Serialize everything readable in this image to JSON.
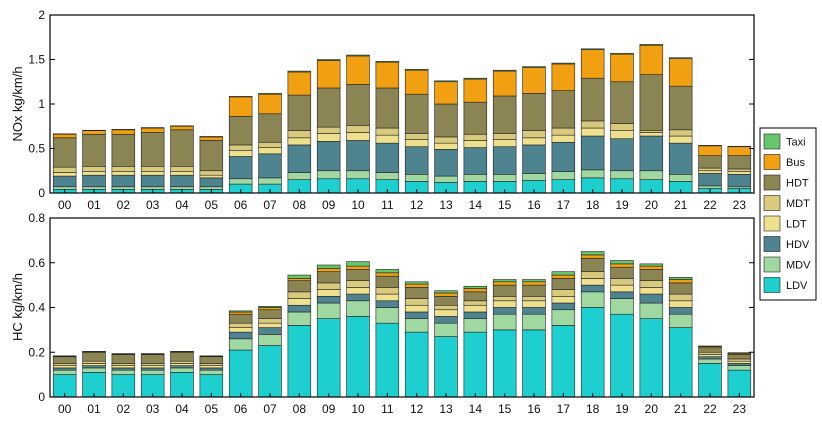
{
  "colors": {
    "LDV": "#1ecfd0",
    "MDV": "#9fd8a1",
    "HDV": "#4e8390",
    "LDT": "#efe08e",
    "MDT": "#d8c97d",
    "HDT": "#8a8552",
    "Bus": "#f0a010",
    "Taxi": "#66c66b"
  },
  "legend": {
    "items": [
      "Taxi",
      "Bus",
      "HDT",
      "MDT",
      "LDT",
      "HDV",
      "MDV",
      "LDV"
    ]
  },
  "chart_data": [
    {
      "type": "bar",
      "stacked": true,
      "title": "",
      "xlabel": "",
      "ylabel": "NOx kg/km/h",
      "ylim": [
        0,
        2
      ],
      "yticks": [
        "0",
        "0.5",
        "1",
        "1.5",
        "2"
      ],
      "categories": [
        "00",
        "01",
        "02",
        "03",
        "04",
        "05",
        "06",
        "07",
        "08",
        "09",
        "10",
        "11",
        "12",
        "13",
        "14",
        "15",
        "16",
        "17",
        "18",
        "19",
        "20",
        "21",
        "22",
        "23"
      ],
      "series": [
        {
          "name": "LDV",
          "values": [
            0.04,
            0.04,
            0.04,
            0.04,
            0.04,
            0.04,
            0.1,
            0.1,
            0.15,
            0.16,
            0.16,
            0.15,
            0.13,
            0.12,
            0.13,
            0.13,
            0.14,
            0.15,
            0.17,
            0.16,
            0.15,
            0.13,
            0.05,
            0.05
          ]
        },
        {
          "name": "MDV",
          "values": [
            0.03,
            0.03,
            0.03,
            0.03,
            0.03,
            0.03,
            0.06,
            0.07,
            0.08,
            0.09,
            0.09,
            0.08,
            0.08,
            0.07,
            0.08,
            0.08,
            0.08,
            0.09,
            0.09,
            0.09,
            0.1,
            0.08,
            0.03,
            0.02
          ]
        },
        {
          "name": "HDV",
          "values": [
            0.12,
            0.13,
            0.13,
            0.13,
            0.13,
            0.1,
            0.25,
            0.27,
            0.31,
            0.33,
            0.34,
            0.33,
            0.31,
            0.3,
            0.3,
            0.31,
            0.32,
            0.33,
            0.38,
            0.36,
            0.39,
            0.35,
            0.14,
            0.14
          ]
        },
        {
          "name": "LDT",
          "values": [
            0.04,
            0.04,
            0.04,
            0.04,
            0.04,
            0.03,
            0.07,
            0.07,
            0.08,
            0.09,
            0.09,
            0.09,
            0.08,
            0.07,
            0.08,
            0.08,
            0.08,
            0.08,
            0.09,
            0.09,
            0.04,
            0.08,
            0.03,
            0.03
          ]
        },
        {
          "name": "MDT",
          "values": [
            0.06,
            0.06,
            0.06,
            0.06,
            0.06,
            0.05,
            0.06,
            0.06,
            0.08,
            0.07,
            0.08,
            0.08,
            0.07,
            0.07,
            0.07,
            0.07,
            0.08,
            0.08,
            0.08,
            0.08,
            0.02,
            0.07,
            0.03,
            0.03
          ]
        },
        {
          "name": "HDT",
          "values": [
            0.33,
            0.36,
            0.36,
            0.38,
            0.41,
            0.34,
            0.32,
            0.32,
            0.4,
            0.44,
            0.46,
            0.45,
            0.44,
            0.37,
            0.36,
            0.42,
            0.42,
            0.42,
            0.48,
            0.47,
            0.63,
            0.49,
            0.14,
            0.15
          ]
        },
        {
          "name": "Bus",
          "values": [
            0.04,
            0.04,
            0.05,
            0.05,
            0.04,
            0.04,
            0.22,
            0.22,
            0.26,
            0.31,
            0.32,
            0.29,
            0.27,
            0.25,
            0.26,
            0.28,
            0.29,
            0.3,
            0.32,
            0.31,
            0.33,
            0.31,
            0.11,
            0.1
          ]
        },
        {
          "name": "Taxi",
          "values": [
            0.005,
            0.005,
            0.005,
            0.005,
            0.005,
            0.005,
            0.005,
            0.01,
            0.01,
            0.01,
            0.01,
            0.01,
            0.01,
            0.01,
            0.01,
            0.01,
            0.01,
            0.01,
            0.01,
            0.01,
            0.01,
            0.01,
            0.005,
            0.005
          ]
        }
      ]
    },
    {
      "type": "bar",
      "stacked": true,
      "title": "",
      "xlabel": "",
      "ylabel": "HC kg/km/h",
      "ylim": [
        0,
        0.8
      ],
      "yticks": [
        "0",
        "0.2",
        "0.4",
        "0.6",
        "0.8"
      ],
      "categories": [
        "00",
        "01",
        "02",
        "03",
        "04",
        "05",
        "06",
        "07",
        "08",
        "09",
        "10",
        "11",
        "12",
        "13",
        "14",
        "15",
        "16",
        "17",
        "18",
        "19",
        "20",
        "21",
        "22",
        "23"
      ],
      "series": [
        {
          "name": "LDV",
          "values": [
            0.1,
            0.11,
            0.1,
            0.1,
            0.11,
            0.1,
            0.21,
            0.23,
            0.32,
            0.35,
            0.36,
            0.33,
            0.29,
            0.27,
            0.29,
            0.3,
            0.3,
            0.32,
            0.4,
            0.37,
            0.35,
            0.31,
            0.15,
            0.12
          ]
        },
        {
          "name": "MDV",
          "values": [
            0.02,
            0.02,
            0.02,
            0.02,
            0.02,
            0.02,
            0.05,
            0.05,
            0.06,
            0.07,
            0.07,
            0.07,
            0.06,
            0.06,
            0.06,
            0.07,
            0.07,
            0.07,
            0.07,
            0.07,
            0.07,
            0.06,
            0.02,
            0.02
          ]
        },
        {
          "name": "HDV",
          "values": [
            0.01,
            0.01,
            0.01,
            0.01,
            0.01,
            0.01,
            0.03,
            0.03,
            0.03,
            0.03,
            0.03,
            0.03,
            0.03,
            0.03,
            0.03,
            0.03,
            0.03,
            0.03,
            0.03,
            0.03,
            0.04,
            0.03,
            0.01,
            0.01
          ]
        },
        {
          "name": "LDT",
          "values": [
            0.01,
            0.01,
            0.01,
            0.01,
            0.01,
            0.01,
            0.02,
            0.02,
            0.03,
            0.03,
            0.03,
            0.03,
            0.03,
            0.03,
            0.03,
            0.03,
            0.03,
            0.03,
            0.03,
            0.03,
            0.03,
            0.03,
            0.01,
            0.01
          ]
        },
        {
          "name": "MDT",
          "values": [
            0.01,
            0.01,
            0.01,
            0.01,
            0.01,
            0.01,
            0.02,
            0.02,
            0.03,
            0.03,
            0.03,
            0.03,
            0.03,
            0.02,
            0.02,
            0.02,
            0.02,
            0.03,
            0.03,
            0.03,
            0.03,
            0.03,
            0.01,
            0.01
          ]
        },
        {
          "name": "HDT",
          "values": [
            0.03,
            0.04,
            0.04,
            0.04,
            0.04,
            0.03,
            0.04,
            0.04,
            0.05,
            0.05,
            0.05,
            0.05,
            0.05,
            0.04,
            0.04,
            0.05,
            0.05,
            0.05,
            0.06,
            0.05,
            0.05,
            0.05,
            0.02,
            0.02
          ]
        },
        {
          "name": "Bus",
          "values": [
            0.002,
            0.002,
            0.002,
            0.002,
            0.002,
            0.002,
            0.01,
            0.01,
            0.01,
            0.015,
            0.015,
            0.015,
            0.015,
            0.015,
            0.015,
            0.015,
            0.015,
            0.015,
            0.015,
            0.015,
            0.015,
            0.015,
            0.005,
            0.005
          ]
        },
        {
          "name": "Taxi",
          "values": [
            0.002,
            0.002,
            0.002,
            0.002,
            0.002,
            0.002,
            0.005,
            0.005,
            0.015,
            0.015,
            0.02,
            0.015,
            0.01,
            0.01,
            0.01,
            0.01,
            0.01,
            0.015,
            0.015,
            0.015,
            0.01,
            0.01,
            0.003,
            0.003
          ]
        }
      ]
    }
  ]
}
